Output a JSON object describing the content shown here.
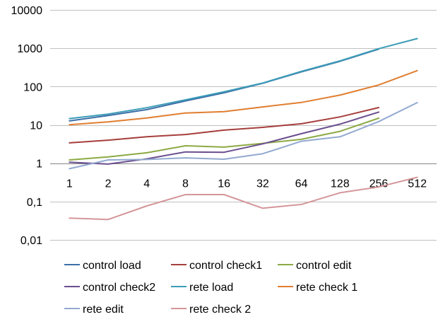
{
  "chart_data": {
    "type": "line",
    "title": "",
    "xlabel": "",
    "ylabel": "",
    "y_scale": "log",
    "ylim": [
      0.01,
      10000
    ],
    "y_ticks": [
      0.01,
      0.1,
      1,
      10,
      100,
      1000,
      10000
    ],
    "y_tick_labels": [
      "0,01",
      "0,1",
      "1",
      "10",
      "100",
      "1000",
      "10000"
    ],
    "categories": [
      "1",
      "2",
      "4",
      "8",
      "16",
      "32",
      "64",
      "128",
      "256",
      "512"
    ],
    "grid": "horizontal",
    "legend_position": "bottom",
    "series": [
      {
        "name": "control load",
        "color": "#3c6fa6",
        "values": [
          12.7,
          17.5,
          25,
          42,
          69,
          122,
          242,
          457,
          947,
          null
        ]
      },
      {
        "name": "control check1",
        "color": "#a63e3c",
        "values": [
          3.4,
          4.0,
          4.9,
          5.6,
          7.3,
          8.6,
          10.7,
          16.2,
          28.3,
          null
        ]
      },
      {
        "name": "control edit",
        "color": "#8caa44",
        "values": [
          1.22,
          1.46,
          1.87,
          2.85,
          2.63,
          3.3,
          4.2,
          6.8,
          15.0,
          null
        ]
      },
      {
        "name": "control check2",
        "color": "#6a4e8f",
        "values": [
          1.06,
          0.95,
          1.3,
          1.97,
          1.93,
          3.2,
          5.9,
          10.5,
          21.6,
          null
        ]
      },
      {
        "name": "rete load",
        "color": "#3b9cb8",
        "values": [
          14.6,
          19.2,
          28.1,
          45,
          73,
          124,
          250,
          468,
          975,
          1790
        ]
      },
      {
        "name": "rete check 1",
        "color": "#e07e30",
        "values": [
          10.1,
          12.0,
          15.1,
          20.4,
          22.2,
          29.5,
          38.5,
          60,
          110,
          261
        ]
      },
      {
        "name": "rete edit",
        "color": "#92a9d0",
        "values": [
          0.72,
          1.22,
          1.25,
          1.38,
          1.27,
          1.77,
          3.75,
          4.9,
          12.2,
          38.2
        ]
      },
      {
        "name": "rete check 2",
        "color": "#d4969a",
        "values": [
          0.037,
          0.034,
          0.077,
          0.152,
          0.152,
          0.067,
          0.084,
          0.17,
          0.24,
          0.43
        ]
      }
    ]
  }
}
